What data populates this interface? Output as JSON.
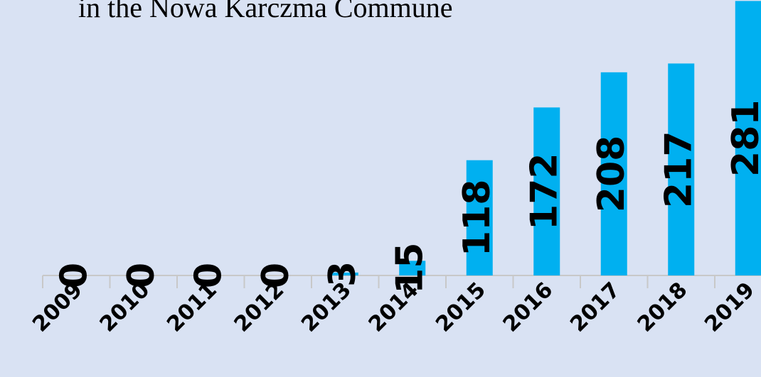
{
  "chart_data": {
    "type": "bar",
    "title": "in the Nowa Karczma Commune",
    "categories": [
      "2009",
      "2010",
      "2011",
      "2012",
      "2013",
      "2014",
      "2015",
      "2016",
      "2017",
      "2018",
      "2019"
    ],
    "values": [
      0,
      0,
      0,
      0,
      3,
      15,
      118,
      172,
      208,
      217,
      281
    ],
    "color": "#00b0f0",
    "ylim": [
      0,
      282
    ]
  }
}
